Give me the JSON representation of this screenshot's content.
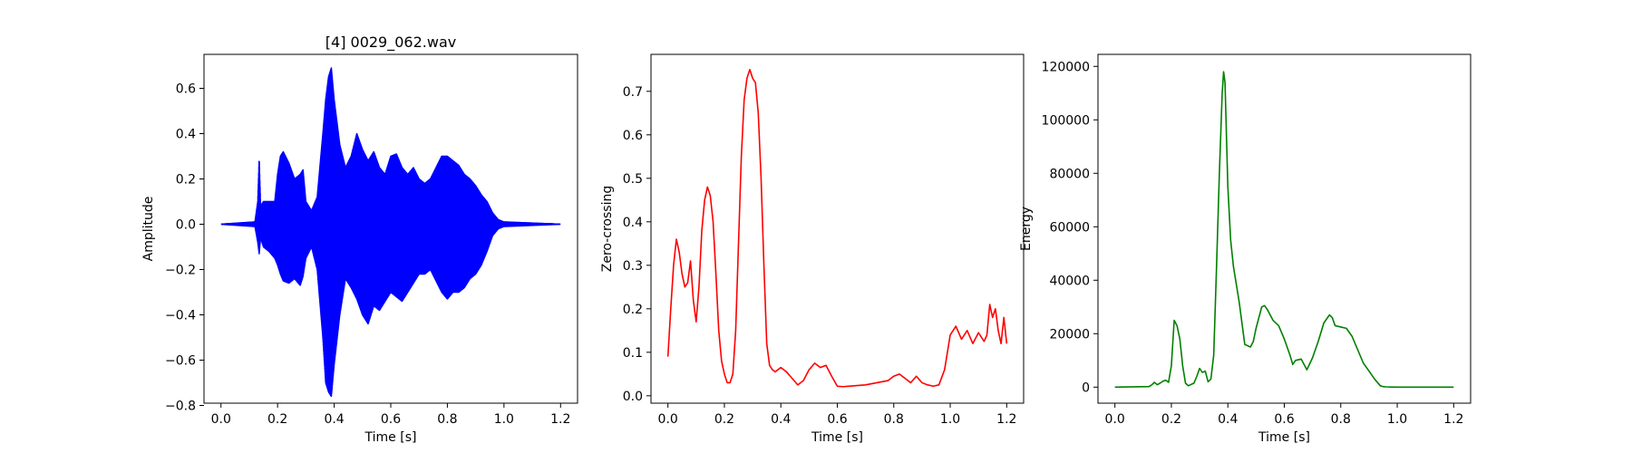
{
  "chart_data": [
    {
      "type": "line",
      "title": "[4] 0029_062.wav",
      "xlabel": "Time [s]",
      "ylabel": "Amplitude",
      "xlim": [
        -0.06,
        1.26
      ],
      "ylim": [
        -0.79,
        0.75
      ],
      "xticks": [
        0.0,
        0.2,
        0.4,
        0.6,
        0.8,
        1.0,
        1.2
      ],
      "xtick_labels": [
        "0.0",
        "0.2",
        "0.4",
        "0.6",
        "0.8",
        "1.0",
        "1.2"
      ],
      "yticks": [
        -0.8,
        -0.6,
        -0.4,
        -0.2,
        0.0,
        0.2,
        0.4,
        0.6
      ],
      "ytick_labels": [
        "−0.8",
        "−0.6",
        "−0.4",
        "−0.2",
        "0.0",
        "0.2",
        "0.4",
        "0.6"
      ],
      "series": [
        {
          "color": "#0000ff",
          "style": "oscillating-envelope",
          "x": [
            0.0,
            0.12,
            0.13,
            0.135,
            0.14,
            0.15,
            0.17,
            0.19,
            0.2,
            0.21,
            0.22,
            0.24,
            0.26,
            0.28,
            0.29,
            0.3,
            0.32,
            0.34,
            0.36,
            0.37,
            0.38,
            0.39,
            0.4,
            0.42,
            0.44,
            0.46,
            0.48,
            0.5,
            0.52,
            0.54,
            0.56,
            0.58,
            0.6,
            0.62,
            0.64,
            0.66,
            0.68,
            0.7,
            0.72,
            0.74,
            0.76,
            0.78,
            0.8,
            0.82,
            0.84,
            0.86,
            0.88,
            0.9,
            0.92,
            0.94,
            0.96,
            0.98,
            1.0,
            1.2
          ],
          "upper": [
            0.0,
            0.01,
            0.1,
            0.29,
            0.08,
            0.1,
            0.1,
            0.1,
            0.22,
            0.3,
            0.32,
            0.27,
            0.2,
            0.22,
            0.24,
            0.1,
            0.06,
            0.12,
            0.4,
            0.55,
            0.65,
            0.69,
            0.55,
            0.35,
            0.25,
            0.3,
            0.4,
            0.33,
            0.28,
            0.32,
            0.25,
            0.22,
            0.3,
            0.31,
            0.25,
            0.22,
            0.25,
            0.2,
            0.18,
            0.2,
            0.25,
            0.3,
            0.3,
            0.28,
            0.26,
            0.22,
            0.2,
            0.17,
            0.13,
            0.1,
            0.05,
            0.02,
            0.01,
            0.0
          ],
          "lower": [
            0.0,
            -0.01,
            -0.08,
            -0.13,
            -0.06,
            -0.1,
            -0.12,
            -0.15,
            -0.18,
            -0.22,
            -0.25,
            -0.26,
            -0.24,
            -0.27,
            -0.23,
            -0.15,
            -0.1,
            -0.2,
            -0.5,
            -0.7,
            -0.74,
            -0.76,
            -0.62,
            -0.4,
            -0.24,
            -0.28,
            -0.33,
            -0.4,
            -0.44,
            -0.36,
            -0.38,
            -0.34,
            -0.3,
            -0.32,
            -0.34,
            -0.3,
            -0.26,
            -0.22,
            -0.22,
            -0.2,
            -0.25,
            -0.3,
            -0.33,
            -0.3,
            -0.3,
            -0.28,
            -0.24,
            -0.22,
            -0.18,
            -0.12,
            -0.05,
            -0.02,
            -0.01,
            0.0
          ]
        }
      ]
    },
    {
      "type": "line",
      "title": "",
      "xlabel": "Time [s]",
      "ylabel": "Zero-crossing",
      "xlim": [
        -0.06,
        1.26
      ],
      "ylim": [
        -0.017,
        0.785
      ],
      "xticks": [
        0.0,
        0.2,
        0.4,
        0.6,
        0.8,
        1.0,
        1.2
      ],
      "xtick_labels": [
        "0.0",
        "0.2",
        "0.4",
        "0.6",
        "0.8",
        "1.0",
        "1.2"
      ],
      "yticks": [
        0.0,
        0.1,
        0.2,
        0.3,
        0.4,
        0.5,
        0.6,
        0.7
      ],
      "ytick_labels": [
        "0.0",
        "0.1",
        "0.2",
        "0.3",
        "0.4",
        "0.5",
        "0.6",
        "0.7"
      ],
      "series": [
        {
          "color": "#ff0000",
          "style": "line",
          "x": [
            0.0,
            0.01,
            0.02,
            0.03,
            0.04,
            0.05,
            0.06,
            0.07,
            0.08,
            0.09,
            0.1,
            0.11,
            0.12,
            0.13,
            0.14,
            0.15,
            0.16,
            0.17,
            0.18,
            0.19,
            0.2,
            0.21,
            0.22,
            0.23,
            0.24,
            0.25,
            0.26,
            0.27,
            0.28,
            0.29,
            0.3,
            0.31,
            0.32,
            0.33,
            0.34,
            0.35,
            0.36,
            0.37,
            0.38,
            0.4,
            0.42,
            0.44,
            0.46,
            0.48,
            0.5,
            0.52,
            0.54,
            0.56,
            0.58,
            0.6,
            0.62,
            0.64,
            0.66,
            0.7,
            0.74,
            0.78,
            0.8,
            0.82,
            0.84,
            0.86,
            0.88,
            0.9,
            0.92,
            0.94,
            0.96,
            0.98,
            0.99,
            1.0,
            1.02,
            1.04,
            1.06,
            1.08,
            1.1,
            1.12,
            1.13,
            1.14,
            1.15,
            1.16,
            1.17,
            1.18,
            1.19,
            1.2
          ],
          "y": [
            0.09,
            0.2,
            0.3,
            0.36,
            0.33,
            0.28,
            0.25,
            0.26,
            0.31,
            0.22,
            0.17,
            0.25,
            0.38,
            0.45,
            0.48,
            0.46,
            0.4,
            0.28,
            0.15,
            0.08,
            0.05,
            0.03,
            0.03,
            0.05,
            0.15,
            0.35,
            0.55,
            0.68,
            0.73,
            0.75,
            0.73,
            0.72,
            0.65,
            0.5,
            0.3,
            0.12,
            0.07,
            0.06,
            0.055,
            0.065,
            0.055,
            0.04,
            0.025,
            0.035,
            0.06,
            0.075,
            0.065,
            0.07,
            0.045,
            0.022,
            0.021,
            0.022,
            0.023,
            0.025,
            0.03,
            0.035,
            0.045,
            0.05,
            0.04,
            0.03,
            0.045,
            0.03,
            0.025,
            0.022,
            0.025,
            0.06,
            0.1,
            0.14,
            0.16,
            0.13,
            0.15,
            0.12,
            0.145,
            0.125,
            0.14,
            0.21,
            0.18,
            0.2,
            0.15,
            0.12,
            0.18,
            0.12
          ]
        }
      ]
    },
    {
      "type": "line",
      "title": "",
      "xlabel": "Time [s]",
      "ylabel": "Energy",
      "xlim": [
        -0.06,
        1.26
      ],
      "ylim": [
        -6000,
        124500
      ],
      "xticks": [
        0.0,
        0.2,
        0.4,
        0.6,
        0.8,
        1.0,
        1.2
      ],
      "xtick_labels": [
        "0.0",
        "0.2",
        "0.4",
        "0.6",
        "0.8",
        "1.0",
        "1.2"
      ],
      "yticks": [
        0,
        20000,
        40000,
        60000,
        80000,
        100000,
        120000
      ],
      "ytick_labels": [
        "0",
        "20000",
        "40000",
        "60000",
        "80000",
        "100000",
        "120000"
      ],
      "series": [
        {
          "color": "#008000",
          "style": "line",
          "x": [
            0.0,
            0.12,
            0.13,
            0.14,
            0.15,
            0.16,
            0.17,
            0.18,
            0.19,
            0.2,
            0.21,
            0.22,
            0.23,
            0.24,
            0.25,
            0.26,
            0.28,
            0.29,
            0.3,
            0.31,
            0.32,
            0.33,
            0.34,
            0.35,
            0.36,
            0.37,
            0.38,
            0.385,
            0.39,
            0.4,
            0.41,
            0.42,
            0.44,
            0.46,
            0.48,
            0.49,
            0.5,
            0.52,
            0.53,
            0.54,
            0.56,
            0.58,
            0.6,
            0.62,
            0.63,
            0.64,
            0.66,
            0.67,
            0.68,
            0.7,
            0.72,
            0.74,
            0.76,
            0.77,
            0.78,
            0.8,
            0.82,
            0.84,
            0.86,
            0.88,
            0.9,
            0.92,
            0.94,
            0.95,
            0.96,
            0.98,
            1.0,
            1.2
          ],
          "y": [
            0,
            200,
            800,
            1800,
            900,
            1500,
            2200,
            2600,
            1800,
            8000,
            25000,
            23000,
            18000,
            8000,
            1500,
            500,
            1500,
            4000,
            7000,
            5500,
            6000,
            2000,
            3000,
            12000,
            45000,
            80000,
            110000,
            118000,
            114000,
            75000,
            55000,
            45000,
            32000,
            16000,
            15000,
            17000,
            22000,
            30000,
            30500,
            29000,
            25000,
            23000,
            18000,
            12000,
            8500,
            10000,
            10500,
            8500,
            6500,
            11000,
            17000,
            24000,
            27000,
            26000,
            23000,
            22500,
            22000,
            19000,
            14000,
            9000,
            6000,
            3000,
            500,
            200,
            100,
            50,
            0,
            0
          ]
        }
      ]
    }
  ]
}
